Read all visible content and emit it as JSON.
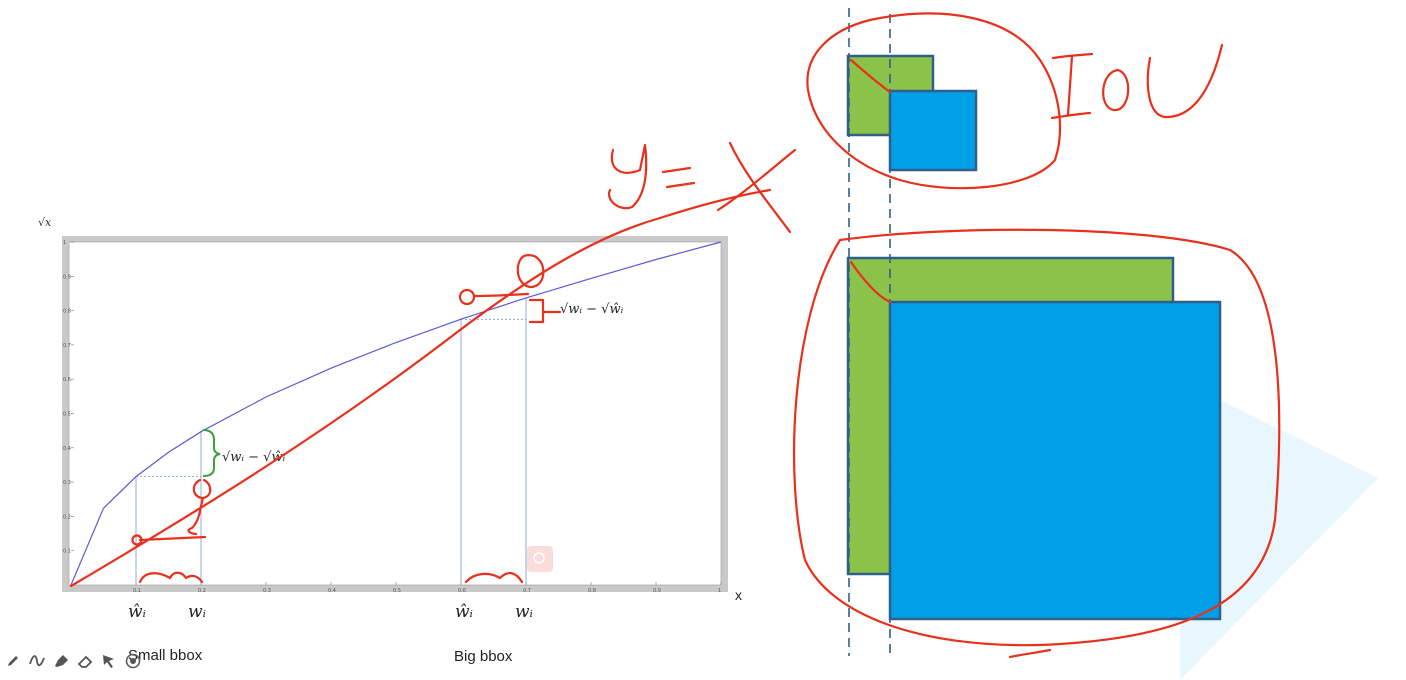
{
  "figure": {
    "y_axis_symbol": "√x",
    "x_axis_label": "x",
    "chart_data": {
      "type": "line",
      "series": [
        {
          "x": [
            0,
            0.05,
            0.1,
            0.15,
            0.2,
            0.3,
            0.4,
            0.5,
            0.6,
            0.7,
            0.8,
            0.9,
            1.0
          ],
          "y": [
            0,
            0.224,
            0.316,
            0.387,
            0.447,
            0.548,
            0.632,
            0.707,
            0.775,
            0.837,
            0.894,
            0.949,
            1.0
          ]
        }
      ],
      "xlim": [
        0,
        1
      ],
      "ylim": [
        0,
        1
      ],
      "x_ticks": [
        "0.1",
        "0.2",
        "0.3",
        "0.4",
        "0.5",
        "0.6",
        "0.7",
        "0.8",
        "0.9",
        "1"
      ],
      "y_ticks": [
        "0.1",
        "0.2",
        "0.3",
        "0.4",
        "0.5",
        "0.6",
        "0.7",
        "0.8",
        "0.9",
        "1"
      ],
      "small_pair": {
        "w_hat": 0.1,
        "w": 0.2
      },
      "big_pair": {
        "w_hat": 0.6,
        "w": 0.7
      }
    },
    "small_gap_annotation": "√wᵢ − √ŵᵢ",
    "big_gap_annotation": "√wᵢ − √ŵᵢ",
    "small_labels": {
      "w_hat": "ŵᵢ",
      "w": "wᵢ"
    },
    "big_labels": {
      "w_hat": "ŵᵢ",
      "w": "wᵢ"
    },
    "small_caption": "Small bbox",
    "big_caption": "Big bbox"
  },
  "ink": {
    "handwritten_y_equals_x": "y = x",
    "handwritten_iou": "IOU"
  },
  "boxes": {
    "green_color": "#8bc34a",
    "blue_color": "#00a0e9",
    "border_color": "#2f5f8a"
  },
  "toolbar": {
    "tools": [
      "pen-icon",
      "curve-icon",
      "highlighter-icon",
      "eraser-icon",
      "pointer-icon",
      "record-icon"
    ]
  }
}
